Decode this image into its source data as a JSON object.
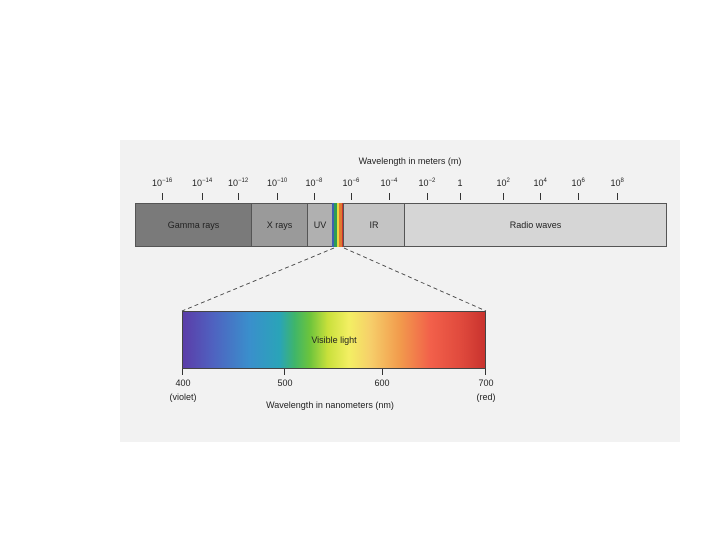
{
  "diagram": {
    "top_axis_title": "Wavelength in meters (m)",
    "top_ticks": [
      {
        "base": "10",
        "exp": "−16"
      },
      {
        "base": "10",
        "exp": "−14"
      },
      {
        "base": "10",
        "exp": "−12"
      },
      {
        "base": "10",
        "exp": "−10"
      },
      {
        "base": "10",
        "exp": "−8"
      },
      {
        "base": "10",
        "exp": "−6"
      },
      {
        "base": "10",
        "exp": "−4"
      },
      {
        "base": "10",
        "exp": "−2"
      },
      {
        "base": "1",
        "exp": ""
      },
      {
        "base": "10",
        "exp": "2"
      },
      {
        "base": "10",
        "exp": "4"
      },
      {
        "base": "10",
        "exp": "6"
      },
      {
        "base": "10",
        "exp": "8"
      }
    ],
    "bands": {
      "gamma": "Gamma rays",
      "xray": "X rays",
      "uv": "UV",
      "ir": "IR",
      "radio": "Radio waves"
    },
    "band_colors": {
      "gamma": "#7a7a7a",
      "xray": "#9a9a9a",
      "uv": "#b0b0b0",
      "ir": "#c4c4c4",
      "radio": "#d6d6d6"
    },
    "spectrum_label": "Visible light",
    "nm_ticks": {
      "t400": "400",
      "t500": "500",
      "t600": "600",
      "t700": "700"
    },
    "nm_sub": {
      "violet": "(violet)",
      "red": "(red)"
    },
    "bottom_axis_title": "Wavelength in nanometers (nm)"
  }
}
